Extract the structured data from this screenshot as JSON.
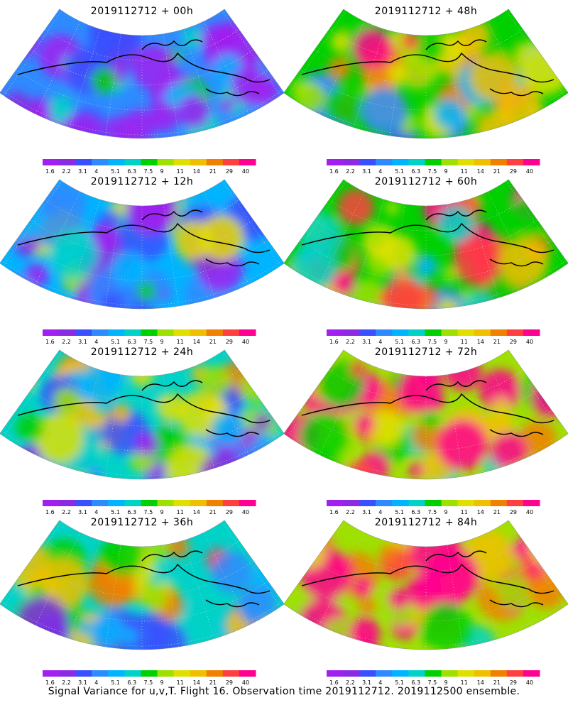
{
  "panels": [
    {
      "title": "2019112712 + 00h",
      "intensity": 0.15
    },
    {
      "title": "2019112712 + 48h",
      "intensity": 0.62
    },
    {
      "title": "2019112712 + 12h",
      "intensity": 0.3
    },
    {
      "title": "2019112712 + 60h",
      "intensity": 0.72
    },
    {
      "title": "2019112712 + 24h",
      "intensity": 0.42
    },
    {
      "title": "2019112712 + 72h",
      "intensity": 0.8
    },
    {
      "title": "2019112712 + 36h",
      "intensity": 0.52
    },
    {
      "title": "2019112712 + 84h",
      "intensity": 0.88
    }
  ],
  "colorbar": {
    "labels": [
      "1.6",
      "2.2",
      "3.1",
      "4",
      "5.1",
      "6.3",
      "7.5",
      "9",
      "11",
      "14",
      "21",
      "29",
      "40"
    ],
    "colors": [
      "#a020f0",
      "#8a2be2",
      "#3a50ff",
      "#2e8bff",
      "#00b4ff",
      "#00d2c8",
      "#00d000",
      "#9ee000",
      "#e0e000",
      "#f0c000",
      "#f08000",
      "#ff4040",
      "#ff0090"
    ]
  },
  "footer": "Signal Variance for u,v,T. Flight 16. Observation time 2019112712. 2019112500 ensemble."
}
